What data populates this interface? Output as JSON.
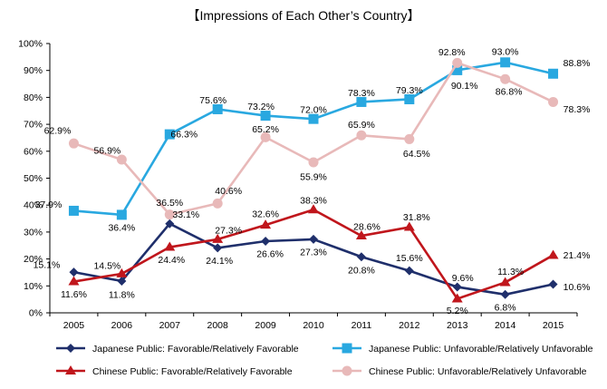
{
  "chart_data": {
    "type": "line",
    "title": "【Impressions of Each Other’s Country】",
    "x": [
      "2005",
      "2006",
      "2007",
      "2008",
      "2009",
      "2010",
      "2011",
      "2012",
      "2013",
      "2014",
      "2015"
    ],
    "y_ticks": [
      "0%",
      "10%",
      "20%",
      "30%",
      "40%",
      "50%",
      "60%",
      "70%",
      "80%",
      "90%",
      "100%"
    ],
    "ylim": [
      0,
      100
    ],
    "grid": false,
    "legend_position": "bottom",
    "series": [
      {
        "name": "Japanese Public: Favorable/Relatively Favorable",
        "color": "#1f2f6b",
        "marker": "diamond",
        "values": [
          15.1,
          11.8,
          33.1,
          24.1,
          26.6,
          27.3,
          20.8,
          15.6,
          9.6,
          6.8,
          10.6
        ],
        "labels": [
          "15.1%",
          "11.8%",
          "33.1%",
          "24.1%",
          "26.6%",
          "27.3%",
          "20.8%",
          "15.6%",
          "9.6%",
          "6.8%",
          "10.6%"
        ]
      },
      {
        "name": "Japanese Public: Unfavorable/Relatively Unfavorable",
        "color": "#29a8e0",
        "marker": "square",
        "values": [
          37.9,
          36.4,
          66.3,
          75.6,
          73.2,
          72.0,
          78.3,
          79.3,
          90.1,
          93.0,
          88.8
        ],
        "labels": [
          "37.9%",
          "36.4%",
          "66.3%",
          "75.6%",
          "73.2%",
          "72.0%",
          "78.3%",
          "79.3%",
          "90.1%",
          "93.0%",
          "88.8%"
        ]
      },
      {
        "name": "Chinese Public: Favorable/Relatively Favorable",
        "color": "#c0161c",
        "marker": "triangle",
        "values": [
          11.6,
          14.5,
          24.4,
          27.3,
          32.6,
          38.3,
          28.6,
          31.8,
          5.2,
          11.3,
          21.4
        ],
        "labels": [
          "11.6%",
          "14.5%",
          "24.4%",
          "27.3%",
          "32.6%",
          "38.3%",
          "28.6%",
          "31.8%",
          "5.2%",
          "11.3%",
          "21.4%"
        ]
      },
      {
        "name": "Chinese Public: Unfavorable/Relatively Unfavorable",
        "color": "#e8b9b9",
        "marker": "circle",
        "values": [
          62.9,
          56.9,
          36.5,
          40.6,
          65.2,
          55.9,
          65.9,
          64.5,
          92.8,
          86.8,
          78.3
        ],
        "labels": [
          "62.9%",
          "56.9%",
          "36.5%",
          "40.6%",
          "65.2%",
          "55.9%",
          "65.9%",
          "64.5%",
          "92.8%",
          "86.8%",
          "78.3%"
        ]
      }
    ]
  }
}
